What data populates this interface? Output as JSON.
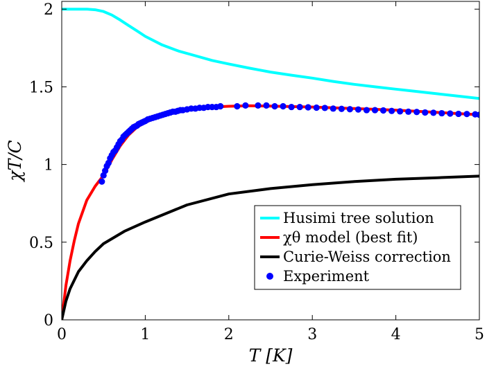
{
  "chart_data": {
    "type": "line",
    "xlabel": "T [K]",
    "ylabel": "χT/C",
    "xlim": [
      0,
      5
    ],
    "ylim": [
      0,
      2.05
    ],
    "x_ticks": [
      "0",
      "1",
      "2",
      "3",
      "4",
      "5"
    ],
    "y_ticks": [
      "0",
      "0.5",
      "1",
      "1.5",
      "2"
    ],
    "grid": false,
    "legend_position": "lower-right",
    "series": [
      {
        "name": "Husimi tree solution",
        "style": "line",
        "color": "#00ffff",
        "x": [
          0,
          0.1,
          0.2,
          0.3,
          0.4,
          0.5,
          0.6,
          0.7,
          0.8,
          0.9,
          1.0,
          1.2,
          1.4,
          1.6,
          1.8,
          2.0,
          2.25,
          2.5,
          2.75,
          3.0,
          3.25,
          3.5,
          3.75,
          4.0,
          4.25,
          4.5,
          4.75,
          5.0
        ],
        "y": [
          2.0,
          2.0,
          2.0,
          2.0,
          1.996,
          1.985,
          1.962,
          1.93,
          1.895,
          1.86,
          1.825,
          1.77,
          1.73,
          1.7,
          1.67,
          1.647,
          1.62,
          1.595,
          1.575,
          1.556,
          1.535,
          1.516,
          1.5,
          1.485,
          1.47,
          1.455,
          1.44,
          1.425
        ]
      },
      {
        "name": "χθ model (best fit)",
        "style": "line",
        "color": "#ff0000",
        "x": [
          0,
          0.05,
          0.1,
          0.15,
          0.2,
          0.3,
          0.4,
          0.5,
          0.6,
          0.7,
          0.8,
          0.9,
          1.0,
          1.2,
          1.4,
          1.6,
          1.8,
          2.0,
          2.25,
          2.5,
          3.0,
          3.5,
          4.0,
          4.5,
          5.0
        ],
        "y": [
          0,
          0.22,
          0.38,
          0.51,
          0.62,
          0.77,
          0.86,
          0.93,
          1.03,
          1.12,
          1.19,
          1.24,
          1.27,
          1.32,
          1.345,
          1.36,
          1.37,
          1.375,
          1.378,
          1.376,
          1.37,
          1.36,
          1.35,
          1.335,
          1.32
        ]
      },
      {
        "name": "Curie-Weiss correction",
        "style": "line",
        "color": "#000000",
        "x": [
          0,
          0.05,
          0.1,
          0.2,
          0.3,
          0.4,
          0.5,
          0.75,
          1.0,
          1.5,
          2.0,
          2.5,
          3.0,
          3.5,
          4.0,
          4.5,
          5.0
        ],
        "y": [
          0,
          0.12,
          0.2,
          0.31,
          0.38,
          0.44,
          0.49,
          0.57,
          0.63,
          0.74,
          0.81,
          0.845,
          0.87,
          0.89,
          0.905,
          0.915,
          0.925
        ]
      },
      {
        "name": "Experiment",
        "style": "scatter",
        "color": "#0000ff",
        "x": [
          0.48,
          0.5,
          0.52,
          0.54,
          0.56,
          0.58,
          0.6,
          0.62,
          0.64,
          0.66,
          0.68,
          0.7,
          0.72,
          0.74,
          0.76,
          0.78,
          0.8,
          0.82,
          0.84,
          0.86,
          0.88,
          0.9,
          0.92,
          0.94,
          0.96,
          0.98,
          1.0,
          1.03,
          1.06,
          1.09,
          1.12,
          1.15,
          1.18,
          1.21,
          1.24,
          1.27,
          1.3,
          1.33,
          1.36,
          1.39,
          1.42,
          1.45,
          1.5,
          1.55,
          1.6,
          1.65,
          1.7,
          1.75,
          1.8,
          1.85,
          1.9,
          2.1,
          2.2,
          2.35,
          2.45,
          2.55,
          2.65,
          2.75,
          2.85,
          2.95,
          3.05,
          3.15,
          3.25,
          3.35,
          3.45,
          3.55,
          3.65,
          3.75,
          3.85,
          3.95,
          4.05,
          4.15,
          4.25,
          4.35,
          4.45,
          4.55,
          4.65,
          4.75,
          4.85,
          4.95,
          5.0
        ],
        "y": [
          0.89,
          0.93,
          0.96,
          0.99,
          1.01,
          1.04,
          1.06,
          1.08,
          1.09,
          1.11,
          1.13,
          1.15,
          1.16,
          1.18,
          1.19,
          1.2,
          1.21,
          1.22,
          1.23,
          1.24,
          1.245,
          1.25,
          1.26,
          1.265,
          1.27,
          1.275,
          1.28,
          1.29,
          1.295,
          1.3,
          1.305,
          1.31,
          1.315,
          1.32,
          1.325,
          1.33,
          1.335,
          1.34,
          1.34,
          1.345,
          1.35,
          1.35,
          1.355,
          1.36,
          1.36,
          1.365,
          1.365,
          1.37,
          1.37,
          1.37,
          1.375,
          1.375,
          1.38,
          1.38,
          1.38,
          1.375,
          1.375,
          1.37,
          1.37,
          1.368,
          1.366,
          1.364,
          1.36,
          1.358,
          1.356,
          1.354,
          1.35,
          1.35,
          1.348,
          1.345,
          1.342,
          1.34,
          1.338,
          1.335,
          1.333,
          1.33,
          1.328,
          1.326,
          1.325,
          1.323,
          1.32
        ]
      }
    ]
  }
}
